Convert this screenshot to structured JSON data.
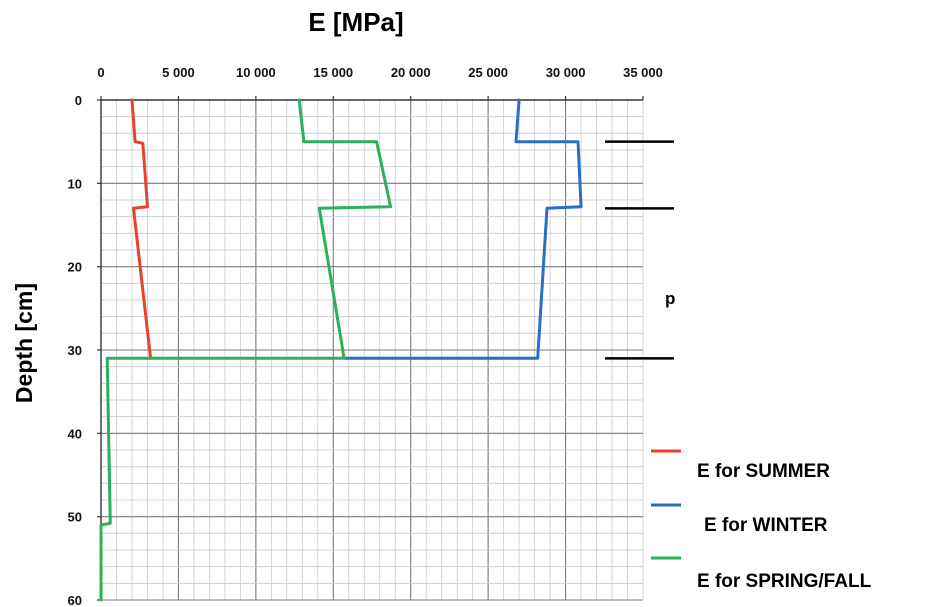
{
  "chart_data": {
    "type": "line",
    "xlabel": "E  [MPa]",
    "ylabel": "Depth  [cm]",
    "xlim": [
      0,
      35000
    ],
    "ylim": [
      0,
      60
    ],
    "x_axis_position": "top",
    "y_inverted": true,
    "grid": true,
    "x_ticks": [
      "0",
      "5 000",
      "10 000",
      "15 000",
      "20 000",
      "25 000",
      "30 000",
      "35 000"
    ],
    "y_ticks": [
      "0",
      "10",
      "20",
      "30",
      "40",
      "50",
      "60"
    ],
    "series": [
      {
        "name": "E  for SUMMER",
        "color": "#e8432a",
        "points": [
          [
            2000,
            0
          ],
          [
            2200,
            5
          ],
          [
            2700,
            5.2
          ],
          [
            3000,
            12.8
          ],
          [
            2100,
            13
          ],
          [
            3200,
            31
          ]
        ]
      },
      {
        "name": "E  for WINTER",
        "color": "#2a6fc4",
        "points": [
          [
            27000,
            0
          ],
          [
            26800,
            5
          ],
          [
            30800,
            5
          ],
          [
            31000,
            12.8
          ],
          [
            28800,
            13
          ],
          [
            28200,
            31
          ],
          [
            15700,
            31
          ]
        ]
      },
      {
        "name": "E  for SPRING/FALL",
        "color": "#2db05c",
        "points": [
          [
            12800,
            0
          ],
          [
            13100,
            5
          ],
          [
            17800,
            5
          ],
          [
            18700,
            12.8
          ],
          [
            14100,
            13
          ],
          [
            15700,
            31
          ],
          [
            400,
            31
          ],
          [
            600,
            50.8
          ],
          [
            0,
            51
          ],
          [
            0,
            60
          ]
        ]
      }
    ],
    "legend_position": "bottom-right",
    "layer_markers": [
      5,
      13,
      31
    ],
    "stray_label": "p"
  }
}
